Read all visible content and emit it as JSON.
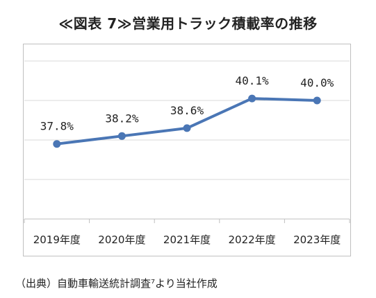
{
  "title": "≪図表 7≫営業用トラック積載率の推移",
  "source": "（出典）自動車輸送統計調査⁷より当社作成",
  "colors": {
    "line": "#4a76b5",
    "grid": "#d9d9d9",
    "border": "#bfbfbf"
  },
  "chart_data": {
    "type": "line",
    "categories": [
      "2019年度",
      "2020年度",
      "2021年度",
      "2022年度",
      "2023年度"
    ],
    "series": [
      {
        "values": [
          37.8,
          38.2,
          38.6,
          40.1,
          40.0
        ]
      }
    ],
    "data_labels": [
      "37.8%",
      "38.2%",
      "38.6%",
      "40.1%",
      "40.0%"
    ],
    "ylim": [
      34.0,
      42.0
    ],
    "grid": true,
    "legend": "none"
  }
}
